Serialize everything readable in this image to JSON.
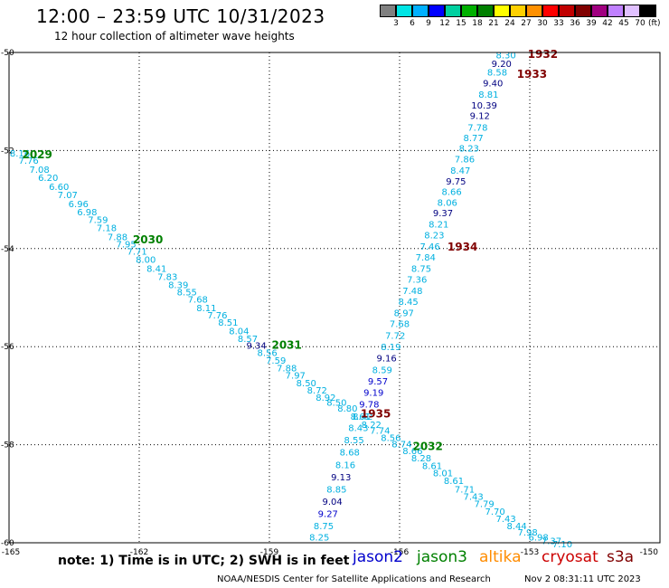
{
  "header": {
    "title": "12:00 – 23:59 UTC 10/31/2023",
    "subtitle": "12 hour collection of altimeter wave heights"
  },
  "legend": {
    "colors": [
      "#808080",
      "#00e5e5",
      "#00b0ff",
      "#0000ff",
      "#00d0a0",
      "#00b000",
      "#008000",
      "#ffff00",
      "#ffd000",
      "#ff9000",
      "#ff0000",
      "#c00000",
      "#800000",
      "#a00080",
      "#c080ff",
      "#e0c0ff",
      "#000000"
    ],
    "ticks": [
      "3",
      "6",
      "9",
      "12",
      "15",
      "18",
      "21",
      "24",
      "27",
      "30",
      "33",
      "36",
      "39",
      "42",
      "45",
      "70"
    ],
    "unit": "(ft)"
  },
  "footer": {
    "note": "note:  1) Time is in UTC;  2) SWH is in feet",
    "satellites": [
      {
        "name": "jason2",
        "color": "#0000cc"
      },
      {
        "name": "jason3",
        "color": "#008000"
      },
      {
        "name": "altika",
        "color": "#ff8c00"
      },
      {
        "name": "cryosat",
        "color": "#cc0000"
      },
      {
        "name": "s3a",
        "color": "#800000"
      }
    ],
    "credit": "NOAA/NESDIS Center for Satellite Applications and Research",
    "timestamp": "Nov  2 08:31:11 UTC 2023"
  },
  "chart_data": {
    "type": "scatter",
    "xlim": [
      -165,
      -150
    ],
    "ylim": [
      -60,
      -50
    ],
    "x_ticks": [
      "-165",
      "-162",
      "-159",
      "-156",
      "-153",
      "-150"
    ],
    "y_ticks": [
      "-50",
      "-52",
      "-54",
      "-56",
      "-58",
      "-60"
    ],
    "x_tick_values": [
      -165,
      -162,
      -159,
      -156,
      -153,
      -150
    ],
    "y_tick_values": [
      -50,
      -52,
      -54,
      -56,
      -58,
      -60
    ],
    "grid": true,
    "colors": {
      "light": "#00b0e0",
      "blue": "#0000cc",
      "navy": "#000080",
      "green": "#008000",
      "maroon": "#800000"
    },
    "tracks": [
      {
        "name": "jason3-pass",
        "points": [
          {
            "lon": -164.75,
            "lat": -52.05,
            "v": "8.16",
            "c": "light"
          },
          {
            "lon": -164.55,
            "lat": -52.2,
            "v": "7.76",
            "c": "light"
          },
          {
            "lon": -164.3,
            "lat": -52.38,
            "v": "7.08",
            "c": "light"
          },
          {
            "lon": -164.1,
            "lat": -52.55,
            "v": "6.20",
            "c": "light"
          },
          {
            "lon": -163.85,
            "lat": -52.73,
            "v": "6.60",
            "c": "light"
          },
          {
            "lon": -163.65,
            "lat": -52.9,
            "v": "7.07",
            "c": "light"
          },
          {
            "lon": -163.4,
            "lat": -53.08,
            "v": "6.96",
            "c": "light"
          },
          {
            "lon": -163.2,
            "lat": -53.25,
            "v": "6.98",
            "c": "light"
          },
          {
            "lon": -162.95,
            "lat": -53.4,
            "v": "7.59",
            "c": "light"
          },
          {
            "lon": -162.75,
            "lat": -53.57,
            "v": "7.18",
            "c": "light"
          },
          {
            "lon": -162.5,
            "lat": -53.75,
            "v": "7.88",
            "c": "light"
          },
          {
            "lon": -162.3,
            "lat": -53.9,
            "v": "7.95",
            "c": "light"
          },
          {
            "lon": -162.05,
            "lat": -54.05,
            "v": "7.71",
            "c": "light"
          },
          {
            "lon": -161.85,
            "lat": -54.22,
            "v": "8.00",
            "c": "light"
          },
          {
            "lon": -161.6,
            "lat": -54.4,
            "v": "8.41",
            "c": "light"
          },
          {
            "lon": -161.35,
            "lat": -54.57,
            "v": "7.83",
            "c": "light"
          },
          {
            "lon": -161.1,
            "lat": -54.73,
            "v": "8.39",
            "c": "light"
          },
          {
            "lon": -160.9,
            "lat": -54.88,
            "v": "8.55",
            "c": "light"
          },
          {
            "lon": -160.65,
            "lat": -55.03,
            "v": "7.68",
            "c": "light"
          },
          {
            "lon": -160.45,
            "lat": -55.2,
            "v": "8.11",
            "c": "light"
          },
          {
            "lon": -160.2,
            "lat": -55.35,
            "v": "7.76",
            "c": "light"
          },
          {
            "lon": -159.95,
            "lat": -55.5,
            "v": "8.51",
            "c": "light"
          },
          {
            "lon": -159.7,
            "lat": -55.67,
            "v": "8.04",
            "c": "light"
          },
          {
            "lon": -159.5,
            "lat": -55.83,
            "v": "8.57",
            "c": "light"
          },
          {
            "lon": -159.3,
            "lat": -55.97,
            "v": "9.34",
            "c": "navy"
          },
          {
            "lon": -159.05,
            "lat": -56.12,
            "v": "8.56",
            "c": "light"
          },
          {
            "lon": -158.85,
            "lat": -56.27,
            "v": "7.59",
            "c": "light"
          },
          {
            "lon": -158.6,
            "lat": -56.43,
            "v": "7.88",
            "c": "light"
          },
          {
            "lon": -158.4,
            "lat": -56.58,
            "v": "7.97",
            "c": "light"
          },
          {
            "lon": -158.15,
            "lat": -56.73,
            "v": "8.50",
            "c": "light"
          },
          {
            "lon": -157.9,
            "lat": -56.88,
            "v": "8.72",
            "c": "light"
          },
          {
            "lon": -157.7,
            "lat": -57.03,
            "v": "8.92",
            "c": "light"
          },
          {
            "lon": -157.45,
            "lat": -57.13,
            "v": "8.50",
            "c": "light"
          },
          {
            "lon": -157.2,
            "lat": -57.25,
            "v": "8.80",
            "c": "light"
          },
          {
            "lon": -156.9,
            "lat": -57.42,
            "v": "8.61",
            "c": "light"
          },
          {
            "lon": -156.65,
            "lat": -57.58,
            "v": "8.22",
            "c": "light"
          },
          {
            "lon": -156.45,
            "lat": -57.7,
            "v": "7.74",
            "c": "light"
          },
          {
            "lon": -156.2,
            "lat": -57.85,
            "v": "8.56",
            "c": "light"
          },
          {
            "lon": -155.95,
            "lat": -57.98,
            "v": "8.74",
            "c": "light"
          },
          {
            "lon": -155.7,
            "lat": -58.12,
            "v": "8.66",
            "c": "light"
          },
          {
            "lon": -155.5,
            "lat": -58.27,
            "v": "8.28",
            "c": "light"
          },
          {
            "lon": -155.25,
            "lat": -58.42,
            "v": "8.61",
            "c": "light"
          },
          {
            "lon": -155.0,
            "lat": -58.57,
            "v": "8.01",
            "c": "light"
          },
          {
            "lon": -154.75,
            "lat": -58.73,
            "v": "8.61",
            "c": "light"
          },
          {
            "lon": -154.5,
            "lat": -58.9,
            "v": "7.71",
            "c": "light"
          },
          {
            "lon": -154.3,
            "lat": -59.05,
            "v": "7.43",
            "c": "light"
          },
          {
            "lon": -154.05,
            "lat": -59.2,
            "v": "7.79",
            "c": "light"
          },
          {
            "lon": -153.8,
            "lat": -59.35,
            "v": "7.70",
            "c": "light"
          },
          {
            "lon": -153.55,
            "lat": -59.5,
            "v": "7.43",
            "c": "light"
          },
          {
            "lon": -153.3,
            "lat": -59.65,
            "v": "8.44",
            "c": "light"
          },
          {
            "lon": -153.05,
            "lat": -59.78,
            "v": "7.98",
            "c": "light"
          },
          {
            "lon": -152.8,
            "lat": -59.88,
            "v": "6.98",
            "c": "light"
          },
          {
            "lon": -152.5,
            "lat": -59.95,
            "v": "7.37",
            "c": "light"
          },
          {
            "lon": -152.25,
            "lat": -60.02,
            "v": "7.10",
            "c": "light"
          }
        ],
        "times": [
          {
            "lon": -164.35,
            "lat": -52.07,
            "t": "2029",
            "c": "green"
          },
          {
            "lon": -161.8,
            "lat": -53.8,
            "t": "2030",
            "c": "green"
          },
          {
            "lon": -158.6,
            "lat": -55.95,
            "t": "2031",
            "c": "green"
          },
          {
            "lon": -155.35,
            "lat": -58.02,
            "t": "2032",
            "c": "green"
          }
        ]
      },
      {
        "name": "s3a-pass",
        "points": [
          {
            "lon": -153.55,
            "lat": -50.05,
            "v": "8.30",
            "c": "light"
          },
          {
            "lon": -153.65,
            "lat": -50.22,
            "v": "9.20",
            "c": "navy"
          },
          {
            "lon": -153.75,
            "lat": -50.4,
            "v": "8.58",
            "c": "light"
          },
          {
            "lon": -153.85,
            "lat": -50.62,
            "v": "9.40",
            "c": "navy"
          },
          {
            "lon": -153.95,
            "lat": -50.85,
            "v": "8.81",
            "c": "light"
          },
          {
            "lon": -154.05,
            "lat": -51.07,
            "v": "10.39",
            "c": "navy"
          },
          {
            "lon": -154.15,
            "lat": -51.28,
            "v": "9.12",
            "c": "navy"
          },
          {
            "lon": -154.2,
            "lat": -51.52,
            "v": "7.78",
            "c": "light"
          },
          {
            "lon": -154.3,
            "lat": -51.73,
            "v": "8.77",
            "c": "light"
          },
          {
            "lon": -154.4,
            "lat": -51.95,
            "v": "8.23",
            "c": "light"
          },
          {
            "lon": -154.5,
            "lat": -52.17,
            "v": "7.86",
            "c": "light"
          },
          {
            "lon": -154.6,
            "lat": -52.4,
            "v": "8.47",
            "c": "light"
          },
          {
            "lon": -154.7,
            "lat": -52.62,
            "v": "9.75",
            "c": "navy"
          },
          {
            "lon": -154.8,
            "lat": -52.83,
            "v": "8.66",
            "c": "light"
          },
          {
            "lon": -154.9,
            "lat": -53.05,
            "v": "8.06",
            "c": "light"
          },
          {
            "lon": -155.0,
            "lat": -53.27,
            "v": "9.37",
            "c": "navy"
          },
          {
            "lon": -155.1,
            "lat": -53.5,
            "v": "8.21",
            "c": "light"
          },
          {
            "lon": -155.2,
            "lat": -53.72,
            "v": "8.23",
            "c": "light"
          },
          {
            "lon": -155.3,
            "lat": -53.95,
            "v": "7.46",
            "c": "light"
          },
          {
            "lon": -155.4,
            "lat": -54.17,
            "v": "7.84",
            "c": "light"
          },
          {
            "lon": -155.5,
            "lat": -54.4,
            "v": "8.75",
            "c": "light"
          },
          {
            "lon": -155.6,
            "lat": -54.62,
            "v": "7.36",
            "c": "light"
          },
          {
            "lon": -155.7,
            "lat": -54.85,
            "v": "7.48",
            "c": "light"
          },
          {
            "lon": -155.8,
            "lat": -55.07,
            "v": "8.45",
            "c": "light"
          },
          {
            "lon": -155.9,
            "lat": -55.3,
            "v": "8.97",
            "c": "light"
          },
          {
            "lon": -156.0,
            "lat": -55.53,
            "v": "7.68",
            "c": "light"
          },
          {
            "lon": -156.1,
            "lat": -55.77,
            "v": "7.72",
            "c": "light"
          },
          {
            "lon": -156.2,
            "lat": -56.0,
            "v": "8.19",
            "c": "light"
          },
          {
            "lon": -156.3,
            "lat": -56.23,
            "v": "9.16",
            "c": "navy"
          },
          {
            "lon": -156.4,
            "lat": -56.47,
            "v": "8.59",
            "c": "light"
          },
          {
            "lon": -156.5,
            "lat": -56.7,
            "v": "9.57",
            "c": "blue"
          },
          {
            "lon": -156.6,
            "lat": -56.93,
            "v": "9.19",
            "c": "blue"
          },
          {
            "lon": -156.7,
            "lat": -57.17,
            "v": "9.78",
            "c": "blue"
          },
          {
            "lon": -156.85,
            "lat": -57.42,
            "v": "8.42",
            "c": "light"
          },
          {
            "lon": -156.95,
            "lat": -57.65,
            "v": "8.43",
            "c": "light"
          },
          {
            "lon": -157.05,
            "lat": -57.9,
            "v": "8.55",
            "c": "light"
          },
          {
            "lon": -157.15,
            "lat": -58.15,
            "v": "8.68",
            "c": "light"
          },
          {
            "lon": -157.25,
            "lat": -58.4,
            "v": "8.16",
            "c": "light"
          },
          {
            "lon": -157.35,
            "lat": -58.65,
            "v": "9.13",
            "c": "navy"
          },
          {
            "lon": -157.45,
            "lat": -58.9,
            "v": "8.85",
            "c": "light"
          },
          {
            "lon": -157.55,
            "lat": -59.15,
            "v": "9.04",
            "c": "navy"
          },
          {
            "lon": -157.65,
            "lat": -59.4,
            "v": "9.27",
            "c": "blue"
          },
          {
            "lon": -157.75,
            "lat": -59.65,
            "v": "8.75",
            "c": "light"
          },
          {
            "lon": -157.85,
            "lat": -59.88,
            "v": "8.25",
            "c": "light"
          }
        ],
        "times": [
          {
            "lon": -152.7,
            "lat": -50.02,
            "t": "1932",
            "c": "maroon"
          },
          {
            "lon": -152.95,
            "lat": -50.42,
            "t": "1933",
            "c": "maroon"
          },
          {
            "lon": -154.55,
            "lat": -53.95,
            "t": "1934",
            "c": "maroon"
          },
          {
            "lon": -156.55,
            "lat": -57.35,
            "t": "1935",
            "c": "maroon"
          }
        ]
      }
    ]
  }
}
